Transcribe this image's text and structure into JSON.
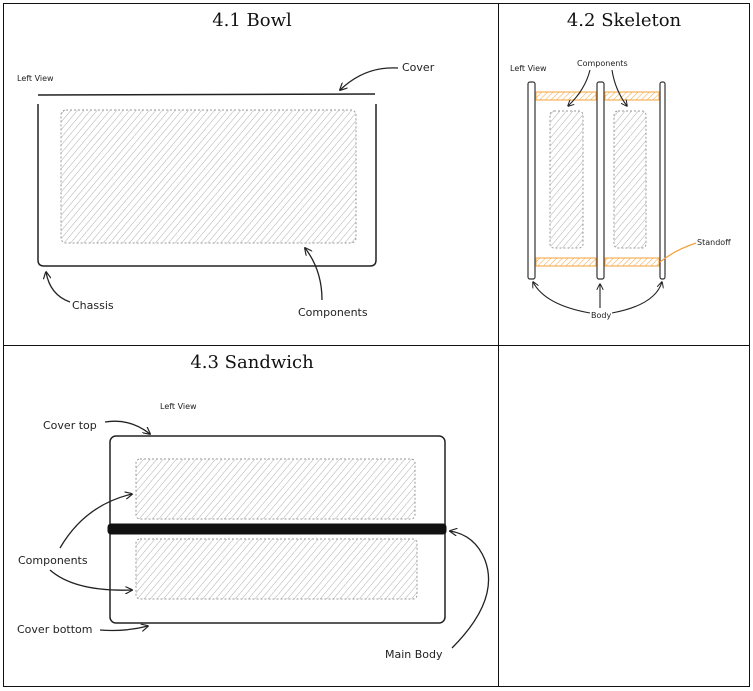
{
  "bowl": {
    "title": "4.1 Bowl",
    "view_label": "Left View",
    "cover_label": "Cover",
    "chassis_label": "Chassis",
    "components_label": "Components"
  },
  "skeleton": {
    "title": "4.2 Skeleton",
    "view_label": "Left View",
    "components_label": "Components",
    "standoff_label": "Standoff",
    "body_label": "Body",
    "standoff_color": "#f5a33a"
  },
  "sandwich": {
    "title": "4.3 Sandwich",
    "view_label": "Left View",
    "cover_top_label": "Cover top",
    "components_label": "Components",
    "cover_bottom_label": "Cover bottom",
    "main_body_label": "Main Body",
    "main_body_color": "#111111"
  }
}
